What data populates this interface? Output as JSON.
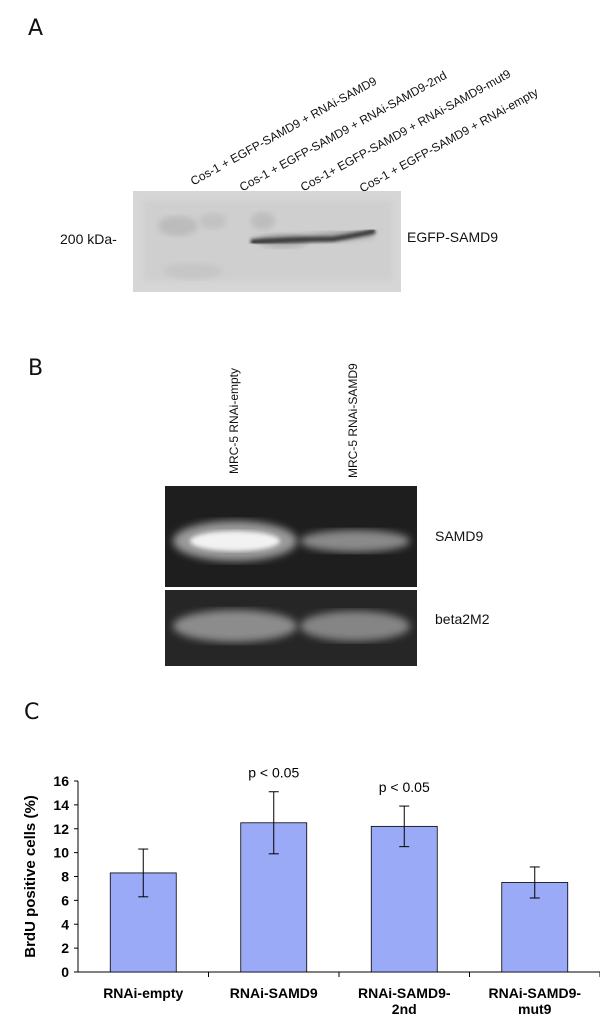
{
  "panel_a": {
    "letter": "A",
    "lane_labels": [
      "Cos-1 + EGFP-SAMD9 + RNAi-SAMD9",
      "Cos-1 + EGFP-SAMD9 + RNAi-SAMD9-2nd",
      "Cos-1+ EGFP-SAMD9 + RNAi-SAMD9-mut9",
      "Cos-1 + EGFP-SAMD9 + RNAi-empty"
    ],
    "size_marker": "200 kDa-",
    "band_label": "EGFP-SAMD9"
  },
  "panel_b": {
    "letter": "B",
    "lane_labels": [
      "MRC-5 RNAi-empty",
      "MRC-5 RNAi-SAMD9"
    ],
    "gel_labels": [
      "SAMD9",
      "beta2M2"
    ]
  },
  "panel_c": {
    "letter": "C",
    "chart_data": {
      "type": "bar",
      "categories": [
        "RNAi-empty",
        "RNAi-SAMD9",
        "RNAi-SAMD9-\n2nd",
        "RNAi-SAMD9-\nmut9"
      ],
      "values": [
        8.3,
        12.5,
        12.2,
        7.5
      ],
      "errors": [
        2.0,
        2.6,
        1.7,
        1.3
      ],
      "annotations": [
        "",
        "p < 0.05",
        "p < 0.05",
        ""
      ],
      "ylabel": "BrdU positive cells (%)",
      "xlabel": "",
      "ylim": [
        0,
        16
      ],
      "yticks": [
        0,
        2,
        4,
        6,
        8,
        10,
        12,
        14,
        16
      ],
      "bar_color": "#9aaaf6",
      "grid": false
    }
  }
}
